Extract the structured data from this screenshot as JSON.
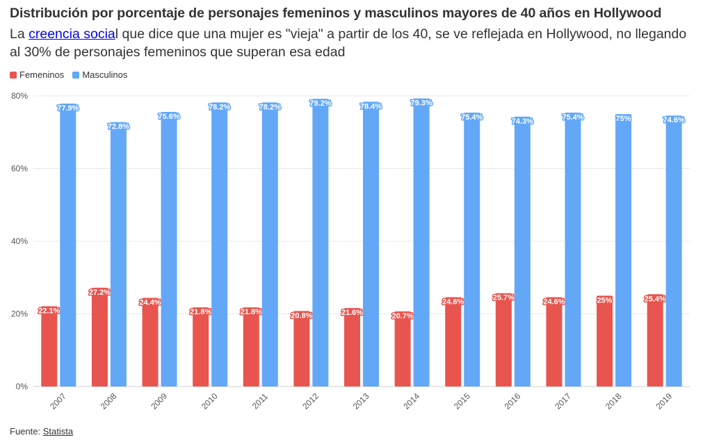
{
  "header": {
    "title": "Distribución por porcentaje de personajes femeninos y masculinos mayores de 40 años en Hollywood",
    "subtitle_prefix": "La ",
    "subtitle_link": "creencia socia",
    "subtitle_rest": "l que dice que una mujer es \"vieja\" a partir de los 40, se ve reflejada en Hollywood, no llegando al 30% de personajes femeninos que superan esa edad"
  },
  "footer": {
    "source_label": "Fuente: ",
    "source_link": "Statista"
  },
  "colors": {
    "femeninos": "#e8554e",
    "masculinos": "#62a8f7",
    "grid": "#e8e8e8",
    "axis": "#cccccc"
  },
  "chart_data": {
    "type": "bar",
    "title": "Distribución por porcentaje de personajes femeninos y masculinos mayores de 40 años en Hollywood",
    "xlabel": "",
    "ylabel": "",
    "ylim": [
      0,
      80
    ],
    "yticks": [
      0,
      20,
      40,
      60,
      80
    ],
    "ytick_labels": [
      "0%",
      "20%",
      "40%",
      "60%",
      "80%"
    ],
    "legend_position": "top-left",
    "grid": true,
    "categories": [
      "2007",
      "2008",
      "2009",
      "2010",
      "2011",
      "2012",
      "2013",
      "2014",
      "2015",
      "2016",
      "2017",
      "2018",
      "2019"
    ],
    "series": [
      {
        "name": "Femeninos",
        "color": "#e8554e",
        "values": [
          22.1,
          27.2,
          24.4,
          21.8,
          21.8,
          20.8,
          21.6,
          20.7,
          24.6,
          25.7,
          24.6,
          25,
          25.4
        ],
        "labels": [
          "22.1%",
          "27.2%",
          "24.4%",
          "21.8%",
          "21.8%",
          "20.8%",
          "21.6%",
          "20.7%",
          "24.6%",
          "25.7%",
          "24.6%",
          "25%",
          "25.4%"
        ]
      },
      {
        "name": "Masculinos",
        "color": "#62a8f7",
        "values": [
          77.9,
          72.8,
          75.6,
          78.2,
          78.2,
          79.2,
          78.4,
          79.3,
          75.4,
          74.3,
          75.4,
          75,
          74.6
        ],
        "labels": [
          "77.9%",
          "72.8%",
          "75.6%",
          "78.2%",
          "78.2%",
          "79.2%",
          "78.4%",
          "79.3%",
          "75.4%",
          "74.3%",
          "75.4%",
          "75%",
          "74.6%"
        ]
      }
    ]
  }
}
